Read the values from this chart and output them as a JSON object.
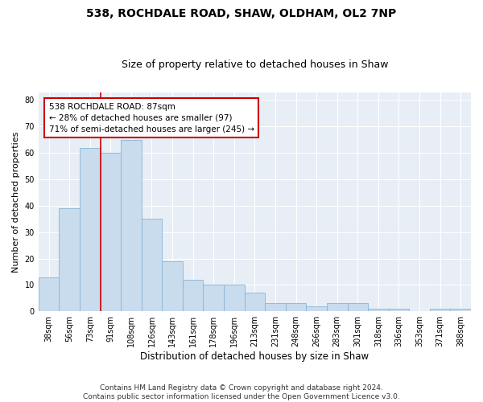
{
  "title": "538, ROCHDALE ROAD, SHAW, OLDHAM, OL2 7NP",
  "subtitle": "Size of property relative to detached houses in Shaw",
  "xlabel": "Distribution of detached houses by size in Shaw",
  "ylabel": "Number of detached properties",
  "categories": [
    "38sqm",
    "56sqm",
    "73sqm",
    "91sqm",
    "108sqm",
    "126sqm",
    "143sqm",
    "161sqm",
    "178sqm",
    "196sqm",
    "213sqm",
    "231sqm",
    "248sqm",
    "266sqm",
    "283sqm",
    "301sqm",
    "318sqm",
    "336sqm",
    "353sqm",
    "371sqm",
    "388sqm"
  ],
  "values": [
    13,
    39,
    62,
    60,
    65,
    35,
    19,
    12,
    10,
    10,
    7,
    3,
    3,
    2,
    3,
    3,
    1,
    1,
    0,
    1,
    1
  ],
  "bar_color": "#c8dcee",
  "bar_edge_color": "#8ab4d4",
  "vline_x": 2.5,
  "vline_color": "#cc0000",
  "annotation_text": "538 ROCHDALE ROAD: 87sqm\n← 28% of detached houses are smaller (97)\n71% of semi-detached houses are larger (245) →",
  "annotation_box_color": "#ffffff",
  "annotation_box_edge": "#cc0000",
  "ylim": [
    0,
    83
  ],
  "yticks": [
    0,
    10,
    20,
    30,
    40,
    50,
    60,
    70,
    80
  ],
  "footnote": "Contains HM Land Registry data © Crown copyright and database right 2024.\nContains public sector information licensed under the Open Government Licence v3.0.",
  "title_fontsize": 10,
  "subtitle_fontsize": 9,
  "xlabel_fontsize": 8.5,
  "ylabel_fontsize": 8,
  "tick_fontsize": 7,
  "annotation_fontsize": 7.5,
  "footnote_fontsize": 6.5,
  "bg_color": "#e8eef6"
}
